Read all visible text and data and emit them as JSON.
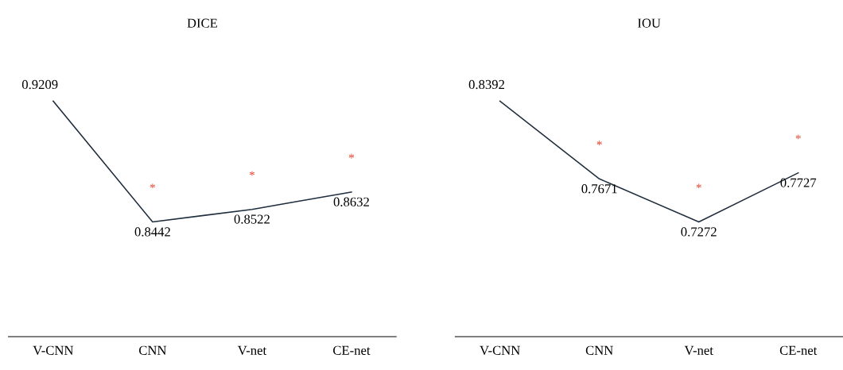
{
  "chart_data": [
    {
      "type": "line",
      "title": "DICE",
      "categories": [
        "V-CNN",
        "CNN",
        "V-net",
        "CE-net"
      ],
      "series": [
        {
          "color": "#1f2d3d",
          "values": [
            0.9209,
            0.8442,
            0.8522,
            0.8632
          ]
        }
      ],
      "data_labels": true,
      "tick_labels": "x",
      "grid": false,
      "legend": false,
      "marker": "none",
      "annotations": [
        "*",
        "*",
        "*"
      ]
    },
    {
      "type": "line",
      "title": "IOU",
      "categories": [
        "V-CNN",
        "CNN",
        "V-net",
        "CE-net"
      ],
      "series": [
        {
          "color": "#1f2d3d",
          "values": [
            0.8392,
            0.7671,
            0.7272,
            0.7727
          ]
        }
      ],
      "data_labels": true,
      "tick_labels": "x",
      "grid": false,
      "legend": false,
      "marker": "none",
      "annotations": [
        "*",
        "*",
        "*"
      ]
    }
  ]
}
